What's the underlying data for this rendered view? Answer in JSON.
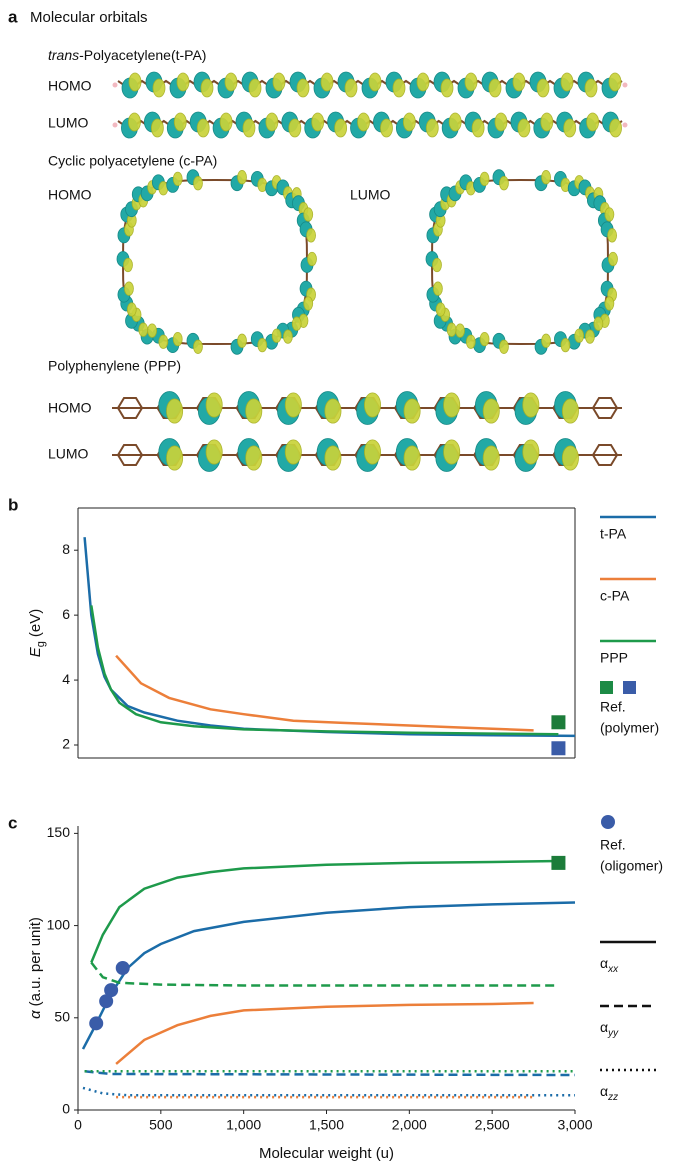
{
  "panel_a": {
    "letter": "a",
    "title": "Molecular orbitals",
    "tpa": {
      "title_italic": "trans",
      "title_rest": "-Polyacetylene(t-PA)",
      "homo": "HOMO",
      "lumo": "LUMO"
    },
    "cpa": {
      "title": "Cyclic polyacetylene (c-PA)",
      "homo": "HOMO",
      "lumo": "LUMO"
    },
    "ppp": {
      "title": "Polyphenylene (PPP)",
      "homo": "HOMO",
      "lumo": "LUMO"
    }
  },
  "chart_data": [
    {
      "type": "line",
      "letter": "b",
      "ylabel": {
        "symbol": "E",
        "subscript": "g",
        "unit": "(eV)"
      },
      "xlim": [
        0,
        3000
      ],
      "ylim": [
        1.6,
        9.3
      ],
      "yticks": [
        2,
        4,
        6,
        8
      ],
      "frame": true,
      "legend": {
        "series": [
          {
            "name": "t-PA",
            "color": "#1b6ca8"
          },
          {
            "name": "c-PA",
            "color": "#ec7f3a"
          },
          {
            "name": "PPP",
            "color": "#1e9a4b"
          }
        ],
        "ref_polymer": {
          "label": [
            "Ref.",
            "(polymer)"
          ],
          "colors": [
            "#1c8a45",
            "#3a5ca8"
          ]
        },
        "ref_oligomer": {
          "label": [
            "Ref.",
            "(oligomer)"
          ],
          "color": "#3a5ca8"
        },
        "styles": [
          {
            "symbol": "α",
            "subscript": "xx",
            "dash": "solid"
          },
          {
            "symbol": "α",
            "subscript": "yy",
            "dash": "dashed"
          },
          {
            "symbol": "α",
            "subscript": "zz",
            "dash": "dotted"
          }
        ]
      },
      "series": [
        {
          "color": "#1b6ca8",
          "dash": "solid",
          "x": [
            40,
            80,
            120,
            160,
            200,
            300,
            400,
            600,
            800,
            1000,
            1500,
            2000,
            2500,
            3000
          ],
          "values": [
            8.4,
            6.0,
            4.8,
            4.1,
            3.7,
            3.2,
            3.0,
            2.75,
            2.6,
            2.5,
            2.4,
            2.33,
            2.3,
            2.28
          ]
        },
        {
          "color": "#ec7f3a",
          "dash": "solid",
          "x": [
            230,
            380,
            550,
            800,
            1000,
            1300,
            1600,
            2000,
            2400,
            2750
          ],
          "values": [
            4.75,
            3.9,
            3.45,
            3.1,
            2.95,
            2.75,
            2.68,
            2.6,
            2.52,
            2.45
          ]
        },
        {
          "color": "#1e9a4b",
          "dash": "solid",
          "x": [
            80,
            120,
            160,
            200,
            250,
            350,
            500,
            700,
            1000,
            1500,
            2000,
            2500,
            2900
          ],
          "values": [
            6.3,
            5.0,
            4.2,
            3.7,
            3.3,
            2.95,
            2.7,
            2.58,
            2.48,
            2.42,
            2.38,
            2.35,
            2.33
          ]
        }
      ],
      "ref_points": [
        {
          "marker": "square",
          "color": "#1c7c3a",
          "x": 2900,
          "value": 2.7
        },
        {
          "marker": "square",
          "color": "#3a5ca8",
          "x": 2900,
          "value": 1.9
        }
      ]
    },
    {
      "type": "line",
      "letter": "c",
      "ylabel": {
        "symbol": "α",
        "unit": "(a.u. per unit)"
      },
      "xlabel": "Molecular weight (u)",
      "xlim": [
        0,
        3000
      ],
      "ylim": [
        0,
        154
      ],
      "yticks": [
        0,
        50,
        100,
        150
      ],
      "xticks": [
        0,
        500,
        {
          "value": 1000,
          "label": "1,000"
        },
        {
          "value": 1500,
          "label": "1,500"
        },
        {
          "value": 2000,
          "label": "2,000"
        },
        {
          "value": 2500,
          "label": "2,500"
        },
        {
          "value": 3000,
          "label": "3,000"
        }
      ],
      "series": [
        {
          "color": "#1b6ca8",
          "dash": "solid",
          "x": [
            30,
            100,
            200,
            300,
            400,
            500,
            700,
            1000,
            1500,
            2000,
            2500,
            3000
          ],
          "values": [
            33,
            45,
            63,
            77,
            85,
            90,
            97,
            102,
            107,
            110,
            111.5,
            112.5
          ]
        },
        {
          "color": "#1e9a4b",
          "dash": "solid",
          "x": [
            80,
            150,
            250,
            400,
            600,
            800,
            1000,
            1500,
            2000,
            2500,
            2900
          ],
          "values": [
            80,
            95,
            110,
            120,
            126,
            129,
            131,
            133,
            134,
            134.5,
            135
          ]
        },
        {
          "color": "#ec7f3a",
          "dash": "solid",
          "x": [
            230,
            400,
            600,
            800,
            1000,
            1500,
            2000,
            2500,
            2750
          ],
          "values": [
            25,
            38,
            46,
            51,
            54,
            56,
            57,
            57.5,
            58
          ]
        },
        {
          "color": "#1e9a4b",
          "dash": "dashed",
          "x": [
            80,
            150,
            250,
            500,
            1000,
            2900
          ],
          "values": [
            80,
            72,
            69,
            68,
            67.5,
            67.5
          ]
        },
        {
          "color": "#1b6ca8",
          "dash": "dashed",
          "x": [
            40,
            200,
            3000
          ],
          "values": [
            21,
            19.5,
            19
          ]
        },
        {
          "color": "#1e9a4b",
          "dash": "dotted",
          "x": [
            40,
            3000
          ],
          "values": [
            21,
            21
          ]
        },
        {
          "color": "#1b6ca8",
          "dash": "dotted",
          "x": [
            30,
            150,
            300,
            3000
          ],
          "values": [
            12,
            9,
            8,
            8
          ]
        },
        {
          "color": "#ec7f3a",
          "dash": "dotted",
          "x": [
            230,
            2750
          ],
          "values": [
            7,
            7
          ]
        }
      ],
      "ref_points": [
        {
          "marker": "square",
          "color": "#1c7c3a",
          "x": 2900,
          "value": 134
        },
        {
          "marker": "circle",
          "color": "#3a5ca8",
          "x": 110,
          "value": 47
        },
        {
          "marker": "circle",
          "color": "#3a5ca8",
          "x": 170,
          "value": 59
        },
        {
          "marker": "circle",
          "color": "#3a5ca8",
          "x": 200,
          "value": 65
        },
        {
          "marker": "circle",
          "color": "#3a5ca8",
          "x": 270,
          "value": 77
        }
      ]
    }
  ]
}
